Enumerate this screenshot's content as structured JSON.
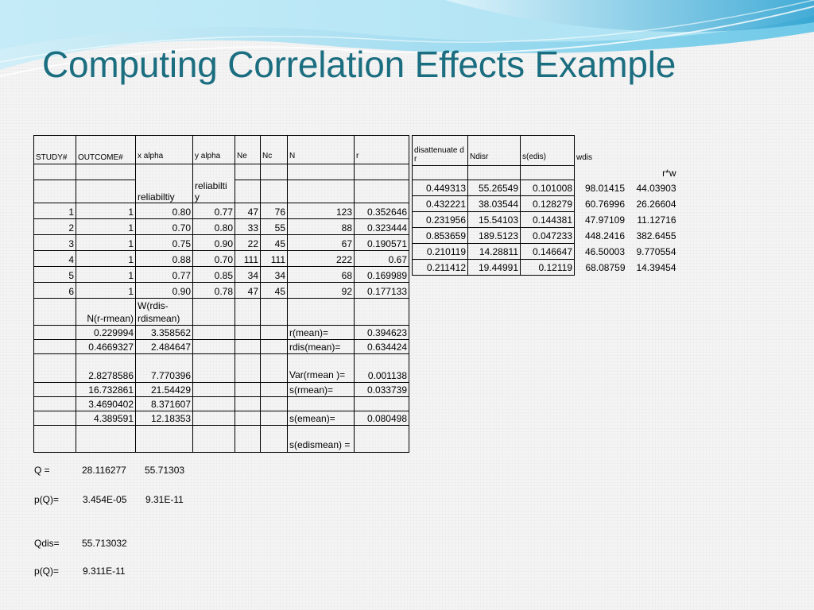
{
  "title": "Computing Correlation Effects Example",
  "colors": {
    "title": "#1b6d80",
    "wave_light": "#aee3f4",
    "wave_mid": "#5fc4e6",
    "wave_dark": "#2a9fcf"
  },
  "table1": {
    "headers": [
      "STUDY#",
      "OUTCOME#",
      "x alpha",
      "y alpha",
      "Ne",
      "Nc",
      "N",
      "r"
    ],
    "subheaders": [
      "reliabiltiy",
      "reliabilti y"
    ],
    "rows": [
      [
        "1",
        "1",
        "0.80",
        "0.77",
        "47",
        "76",
        "123",
        "0.352646"
      ],
      [
        "2",
        "1",
        "0.70",
        "0.80",
        "33",
        "55",
        "88",
        "0.323444"
      ],
      [
        "3",
        "1",
        "0.75",
        "0.90",
        "22",
        "45",
        "67",
        "0.190571"
      ],
      [
        "4",
        "1",
        "0.88",
        "0.70",
        "111",
        "111",
        "222",
        "0.67"
      ],
      [
        "5",
        "1",
        "0.77",
        "0.85",
        "34",
        "34",
        "68",
        "0.169989"
      ],
      [
        "6",
        "1",
        "0.90",
        "0.78",
        "47",
        "45",
        "92",
        "0.177133"
      ]
    ],
    "lower_headers": [
      "N(r-rmean)",
      "W(rdis- rdismean)"
    ],
    "lower_rows": [
      [
        "0.229994",
        "3.358562",
        "r(mean)=",
        "0.394623"
      ],
      [
        "0.4669327",
        "2.484647",
        "rdis(mean)=",
        "0.634424"
      ],
      [
        "2.8278586",
        "7.770396",
        "Var(rmean )=",
        "0.001138"
      ],
      [
        "16.732861",
        "21.54429",
        "s(rmean)=",
        "0.033739"
      ],
      [
        "3.4690402",
        "8.371607",
        "",
        ""
      ],
      [
        "4.389591",
        "12.18353",
        "s(emean)=",
        "0.080498"
      ],
      [
        "",
        "",
        "s(edismean) =",
        ""
      ]
    ]
  },
  "table2": {
    "headers": [
      "disattenuate d r",
      "Ndisr",
      "s(edis)",
      "wdis"
    ],
    "extra_header": "r*w",
    "rows": [
      [
        "0.449313",
        "55.26549",
        "0.101008",
        "98.01415",
        "44.03903"
      ],
      [
        "0.432221",
        "38.03544",
        "0.128279",
        "60.76996",
        "26.26604"
      ],
      [
        "0.231956",
        "15.54103",
        "0.144381",
        "47.97109",
        "11.12716"
      ],
      [
        "0.853659",
        "189.5123",
        "0.047233",
        "448.2416",
        "382.6455"
      ],
      [
        "0.210119",
        "14.28811",
        "0.146647",
        "46.50003",
        "9.770554"
      ],
      [
        "0.211412",
        "19.44991",
        "0.12119",
        "68.08759",
        "14.39454"
      ]
    ]
  },
  "stats": {
    "q_label": "Q =",
    "q_value": "28.116277",
    "q_dis": "55.71303",
    "pq_label": "p(Q)=",
    "pq_value": "3.454E-05",
    "pq_dis": "9.31E-11",
    "qdis_label": "Qdis=",
    "qdis_value": "55.713032",
    "pq2_label": "p(Q)=",
    "pq2_value": "9.311E-11"
  }
}
